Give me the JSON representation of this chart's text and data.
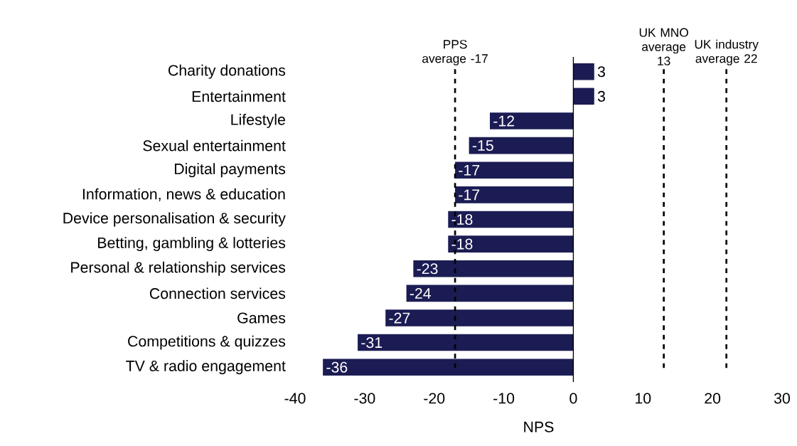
{
  "chart_data": {
    "type": "bar",
    "orientation": "horizontal",
    "xlabel": "NPS",
    "categories": [
      "Charity donations",
      "Entertainment",
      "Lifestyle",
      "Sexual entertainment",
      "Digital payments",
      "Information, news & education",
      "Device personalisation & security",
      "Betting, gambling & lotteries",
      "Personal & relationship services",
      "Connection services",
      "Games",
      "Competitions & quizzes",
      "TV & radio engagement"
    ],
    "values": [
      3,
      3,
      -12,
      -15,
      -17,
      -17,
      -18,
      -18,
      -23,
      -24,
      -27,
      -31,
      -36
    ],
    "color": "#1c1c54",
    "xlim": [
      -40,
      30
    ],
    "xticks": [
      -40,
      -30,
      -20,
      -10,
      0,
      10,
      20,
      30
    ],
    "data_labels": true,
    "ref_lines": [
      {
        "axis": "x",
        "value": -17,
        "label": "PPS average -17",
        "line_style": "dashed",
        "color": "#000000"
      },
      {
        "axis": "x",
        "value": 13,
        "label": "UK MNO average 13",
        "line_style": "dashed",
        "color": "#000000"
      },
      {
        "axis": "x",
        "value": 22,
        "label": "UK industry average 22",
        "line_style": "dashed",
        "color": "#000000"
      }
    ]
  }
}
